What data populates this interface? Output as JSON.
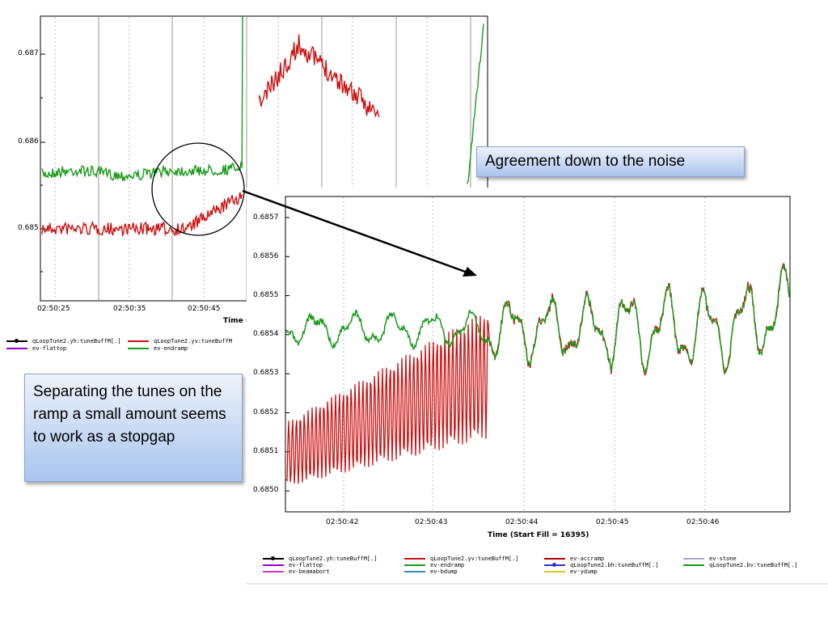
{
  "colors": {
    "green": "#1a9a1a",
    "red": "#cc1111",
    "callout_border": "#8aa4d0"
  },
  "left_plot": {
    "y_ticks": [
      "0.687",
      "0.686",
      "0.685"
    ],
    "x_ticks": [
      "02:50:25",
      "02:50:35",
      "02:50:45"
    ],
    "x_title": "Time (St",
    "legend": [
      {
        "label": "qLoopTune2.yh:tuneBuffM[.]",
        "color": "#000000",
        "marker": true
      },
      {
        "label": "qLoopTune2.yv:tuneBuffM",
        "color": "#cc1111",
        "marker": false
      },
      {
        "label": "ev-flattop",
        "color": "#9900cc",
        "marker": false
      },
      {
        "label": "ev-endramp",
        "color": "#1a9a1a",
        "marker": false
      }
    ]
  },
  "right_plot": {
    "y_ticks": [
      "0.6857",
      "0.6856",
      "0.6855",
      "0.6854",
      "0.6853",
      "0.6852",
      "0.6851",
      "0.6850"
    ],
    "x_ticks": [
      "02:50:42",
      "02:50:43",
      "02:50:44",
      "02:50:45",
      "02:50:46"
    ],
    "x_title": "Time (Start Fill = 16395)",
    "legend": [
      {
        "label": "qLoopTune2.yh:tuneBuffM[.]",
        "color": "#000000",
        "marker": true
      },
      {
        "label": "qLoopTune2.yv:tuneBuffM[.]",
        "color": "#cc1111",
        "marker": false
      },
      {
        "label": "ev-accramp",
        "color": "#aa0000",
        "marker": false
      },
      {
        "label": "ev-stone",
        "color": "#aaaacc",
        "marker": false
      },
      {
        "label": "ev-flattop",
        "color": "#9900cc",
        "marker": false
      },
      {
        "label": "ev-endramp",
        "color": "#1a9a1a",
        "marker": false
      },
      {
        "label": "qLoopTune2.bh:tuneBuffM[.]",
        "color": "#3333cc",
        "marker": true
      },
      {
        "label": "qLoopTune2.bv:tuneBuffM[.]",
        "color": "#1a9a1a",
        "marker": false
      },
      {
        "label": "ev-beamabort",
        "color": "#cc33cc",
        "marker": false
      },
      {
        "label": "ev-bdump",
        "color": "#3388cc",
        "marker": false
      },
      {
        "label": "ev-ydump",
        "color": "#ddcc00",
        "marker": false
      }
    ]
  },
  "callouts": {
    "agreement": "Agreement down to the noise",
    "separating": "Separating the tunes on the ramp a small amount seems to work as a stopgap"
  }
}
